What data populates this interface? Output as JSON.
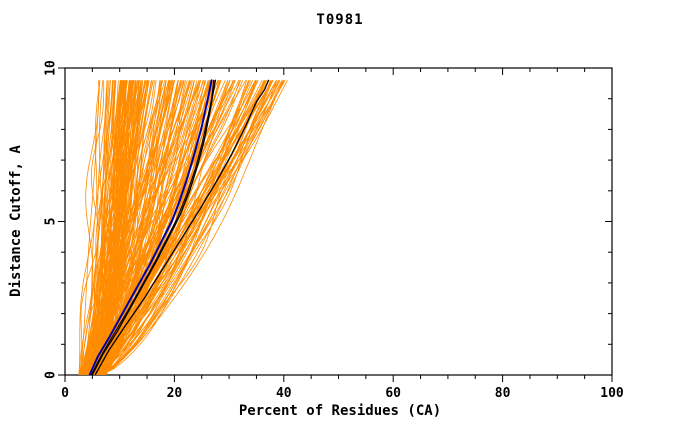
{
  "chart_data": {
    "type": "line",
    "title": "T0981",
    "xlabel": "Percent of Residues (CA)",
    "ylabel": "Distance Cutoff, A",
    "xlim": [
      0,
      100
    ],
    "ylim": [
      0,
      10
    ],
    "x_major_ticks": [
      0,
      20,
      40,
      60,
      80,
      100
    ],
    "x_minor_step": 5,
    "y_major_ticks": [
      0,
      5,
      10
    ],
    "y_minor_step": 1,
    "grid": false,
    "legend": "none",
    "colors": {
      "ensemble": "#FF8C00",
      "highlight": "#0000AA",
      "reference": "#000000",
      "frame": "#000000",
      "text": "#000000",
      "background": "#FFFFFF"
    },
    "ensemble": {
      "description": "bundle of model curves",
      "color_key": "ensemble",
      "count": 230,
      "seed": 7,
      "y_top": 9.6,
      "x_start_min": 2.5,
      "x_start_max": 7.5,
      "x_end_max": 41,
      "spread_min": 3.5,
      "spread_pow": 1.7,
      "exp_min": 0.6,
      "exp_max": 1.0,
      "wiggle_max": 1.4,
      "stroke_width": 0.8
    },
    "series": [
      {
        "name": "black-curve-1",
        "color_key": "reference",
        "width": 1.3,
        "points": [
          [
            5,
            0
          ],
          [
            7,
            0.7
          ],
          [
            9.5,
            1.4
          ],
          [
            12,
            2.2
          ],
          [
            14.5,
            3
          ],
          [
            17,
            3.8
          ],
          [
            19,
            4.5
          ],
          [
            21,
            5.2
          ],
          [
            22.8,
            6
          ],
          [
            24.2,
            6.8
          ],
          [
            25.4,
            7.6
          ],
          [
            26.3,
            8.4
          ],
          [
            27,
            9.1
          ],
          [
            27.5,
            9.6
          ]
        ]
      },
      {
        "name": "black-curve-2",
        "color_key": "reference",
        "width": 1.3,
        "points": [
          [
            5.5,
            0
          ],
          [
            8,
            0.8
          ],
          [
            11,
            1.6
          ],
          [
            14.5,
            2.5
          ],
          [
            18,
            3.5
          ],
          [
            21.5,
            4.5
          ],
          [
            25,
            5.5
          ],
          [
            28,
            6.4
          ],
          [
            30.5,
            7.2
          ],
          [
            33,
            8.1
          ],
          [
            35,
            8.9
          ],
          [
            36.5,
            9.3
          ],
          [
            37.2,
            9.6
          ]
        ]
      },
      {
        "name": "black-curve-3",
        "color_key": "reference",
        "width": 1.1,
        "points": [
          [
            4.8,
            0
          ],
          [
            6.5,
            0.6
          ],
          [
            8.8,
            1.3
          ],
          [
            11.5,
            2.1
          ],
          [
            14,
            2.9
          ],
          [
            16.5,
            3.7
          ],
          [
            18.5,
            4.4
          ],
          [
            20.5,
            5.1
          ],
          [
            22.3,
            5.9
          ],
          [
            23.8,
            6.7
          ],
          [
            25,
            7.5
          ],
          [
            26,
            8.3
          ],
          [
            26.8,
            9
          ],
          [
            27.2,
            9.6
          ]
        ]
      },
      {
        "name": "blue-curve",
        "color_key": "highlight",
        "width": 2,
        "points": [
          [
            4.5,
            0
          ],
          [
            6,
            0.6
          ],
          [
            8,
            1.2
          ],
          [
            10.5,
            2
          ],
          [
            13,
            2.8
          ],
          [
            15.5,
            3.6
          ],
          [
            17.5,
            4.3
          ],
          [
            19.5,
            5
          ],
          [
            21,
            5.7
          ],
          [
            22.5,
            6.5
          ],
          [
            23.8,
            7.3
          ],
          [
            25,
            8.1
          ],
          [
            26,
            8.9
          ],
          [
            26.8,
            9.6
          ]
        ]
      }
    ]
  }
}
